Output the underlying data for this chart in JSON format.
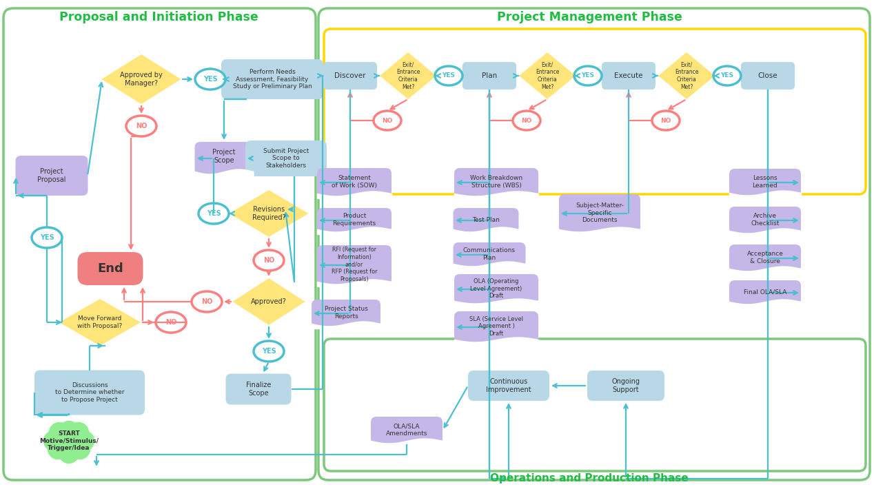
{
  "bg_color": "#ffffff",
  "title_left": "Proposal and Initiation Phase",
  "title_right": "Project Management Phase",
  "title_ops": "Operations and Production Phase",
  "green_border": "#7DC87D",
  "yellow_border": "#FFD700",
  "blue_box": "#B8D8E8",
  "purple_box": "#C5B8E8",
  "yellow_diamond": "#FFE57A",
  "green_cloud": "#90EE90",
  "pink_end": "#F08080",
  "teal_arrow": "#4ABFCF",
  "pink_arrow": "#FF7F7F",
  "title_green": "#22BB44",
  "text_dark": "#333333",
  "white": "#ffffff"
}
